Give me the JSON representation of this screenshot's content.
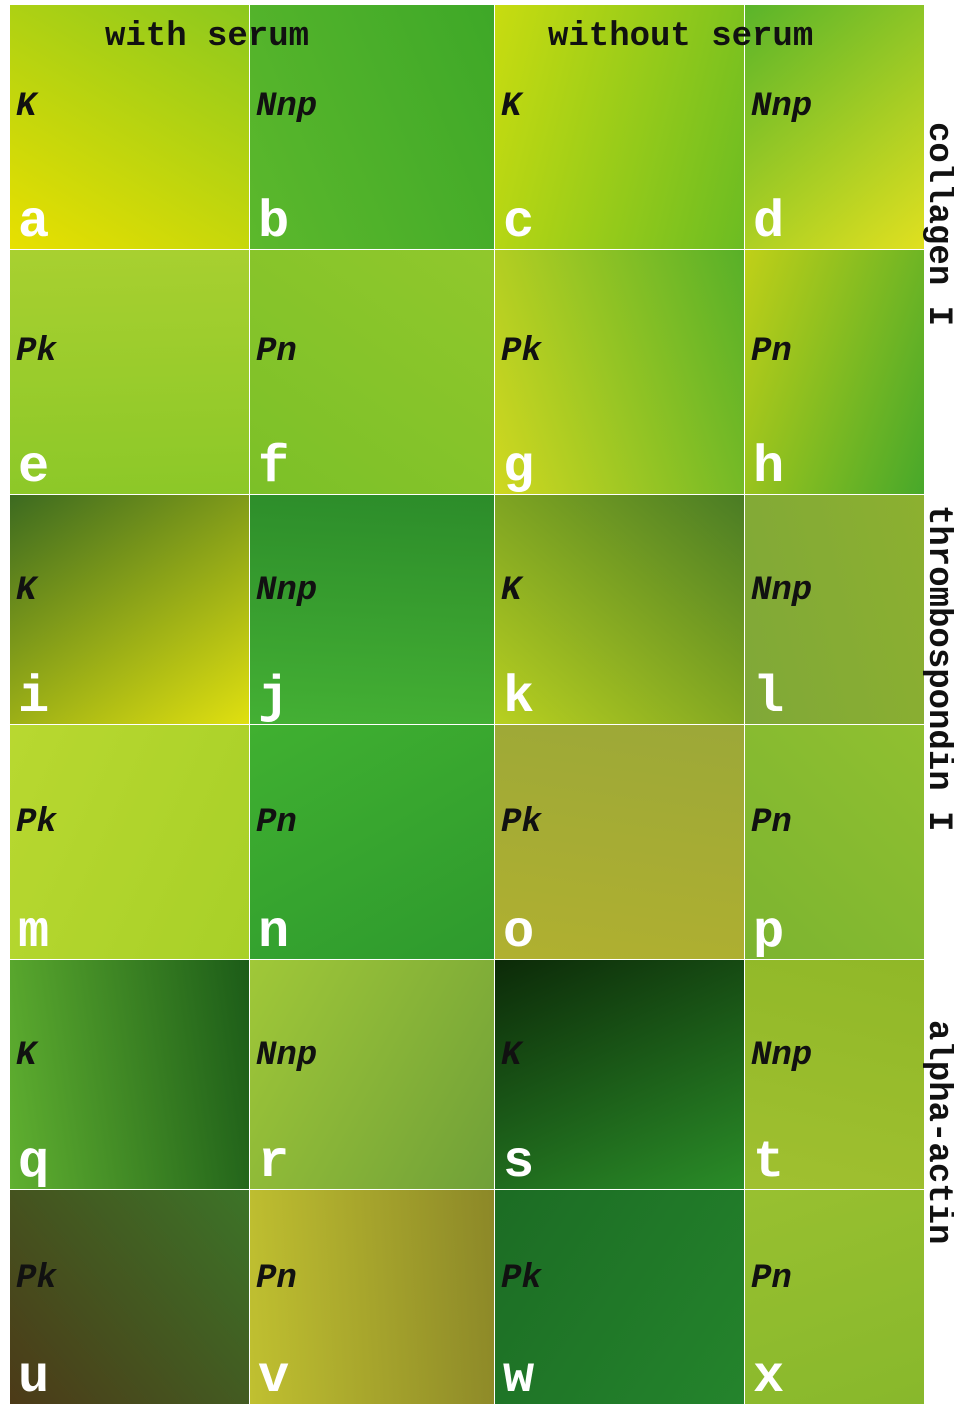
{
  "header": {
    "columns": [
      "with serum",
      "without serum"
    ]
  },
  "side_labels": [
    "collagen I",
    "thrombospondin I",
    "alpha-actin"
  ],
  "panels": [
    {
      "letter": "a",
      "label": "K"
    },
    {
      "letter": "b",
      "label": "Nnp"
    },
    {
      "letter": "c",
      "label": "K"
    },
    {
      "letter": "d",
      "label": "Nnp"
    },
    {
      "letter": "e",
      "label": "Pk"
    },
    {
      "letter": "f",
      "label": "Pn"
    },
    {
      "letter": "g",
      "label": "Pk"
    },
    {
      "letter": "h",
      "label": "Pn"
    },
    {
      "letter": "i",
      "label": "K"
    },
    {
      "letter": "j",
      "label": "Nnp"
    },
    {
      "letter": "k",
      "label": "K"
    },
    {
      "letter": "l",
      "label": "Nnp"
    },
    {
      "letter": "m",
      "label": "Pk"
    },
    {
      "letter": "n",
      "label": "Pn"
    },
    {
      "letter": "o",
      "label": "Pk"
    },
    {
      "letter": "p",
      "label": "Pn"
    },
    {
      "letter": "q",
      "label": "K"
    },
    {
      "letter": "r",
      "label": "Nnp"
    },
    {
      "letter": "s",
      "label": "K"
    },
    {
      "letter": "t",
      "label": "Nnp"
    },
    {
      "letter": "u",
      "label": "Pk"
    },
    {
      "letter": "v",
      "label": "Pn"
    },
    {
      "letter": "w",
      "label": "Pk"
    },
    {
      "letter": "x",
      "label": "Pn"
    }
  ]
}
